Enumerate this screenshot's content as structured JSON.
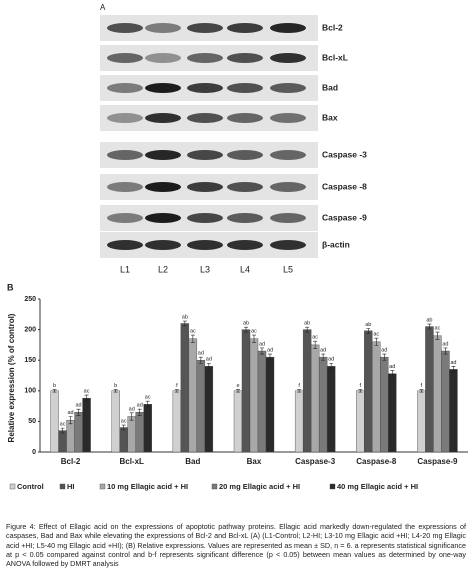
{
  "panel_a": {
    "label": "A",
    "proteins": [
      "Bcl-2",
      "Bcl-xL",
      "Bad",
      "Bax",
      "Caspase -3",
      "Caspase -8",
      "Caspase -9",
      "β-actin"
    ],
    "lanes": [
      "L1",
      "L2",
      "L3",
      "L4",
      "L5"
    ]
  },
  "panel_b": {
    "label": "B"
  },
  "chart_data": {
    "type": "bar",
    "y_label": "Relative expression (% of control)",
    "categories": [
      "Bcl-2",
      "Bcl-xL",
      "Bad",
      "Bax",
      "Caspase-3",
      "Caspase-8",
      "Caspase-9"
    ],
    "series": [
      {
        "name": "Control",
        "color": "#d0d0d0",
        "values": [
          100,
          100,
          100,
          100,
          100,
          100,
          100
        ],
        "errors": [
          2,
          2,
          2,
          2,
          2,
          2,
          2
        ],
        "labels": [
          "b",
          "b",
          "f",
          "e",
          "f",
          "f",
          "f"
        ]
      },
      {
        "name": "HI",
        "color": "#555555",
        "values": [
          35,
          40,
          210,
          200,
          200,
          198,
          205
        ],
        "errors": [
          4,
          4,
          4,
          4,
          4,
          4,
          4
        ],
        "labels": [
          "ac",
          "ac",
          "ab",
          "ab",
          "ab",
          "ab",
          "ab"
        ]
      },
      {
        "name": "10 mg Ellagic acid + HI",
        "color": "#a8a8a8",
        "values": [
          52,
          58,
          185,
          185,
          175,
          180,
          190
        ],
        "errors": [
          6,
          6,
          6,
          6,
          6,
          6,
          6
        ],
        "labels": [
          "ad",
          "ad",
          "ac",
          "ac",
          "ac",
          "ac",
          "ac"
        ]
      },
      {
        "name": "20 mg Ellagic acid + HI",
        "color": "#7a7a7a",
        "values": [
          65,
          65,
          150,
          165,
          155,
          155,
          165
        ],
        "errors": [
          5,
          5,
          5,
          5,
          5,
          5,
          5
        ],
        "labels": [
          "ad",
          "ad",
          "ad",
          "ad",
          "ad",
          "ad",
          "ad"
        ]
      },
      {
        "name": "40 mg Ellagic acid + HI",
        "color": "#2a2a2a",
        "values": [
          88,
          78,
          140,
          155,
          140,
          128,
          135
        ],
        "errors": [
          5,
          5,
          5,
          5,
          5,
          5,
          5
        ],
        "labels": [
          "ac",
          "ac",
          "ad",
          "ad",
          "ad",
          "ad",
          "ad"
        ]
      }
    ],
    "ylim": [
      0,
      250
    ],
    "yticks": [
      0,
      50,
      100,
      150,
      200,
      250
    ],
    "grid": false
  },
  "caption": "Figure 4: Effect of Ellagic acid on the expressions of apoptotic pathway proteins. Ellagic acid markedly down-regulated the expressions of caspases, Bad and Bax while elevating the expressions of Bcl-2 and Bcl-xL (A) (L1-Control; L2-HI; L3-10 mg Ellagic acid +HI; L4-20 mg Ellagic acid +HI; L5-40 mg Ellagic acid +HI); (B) Relative expressions. Values are represented as mean ± SD, n = 6. a represents statistical significance at p < 0.05 compared against control and b-f represents significant difference (p < 0.05) between mean values as determined by one-way ANOVA followed by DMRT analysis"
}
